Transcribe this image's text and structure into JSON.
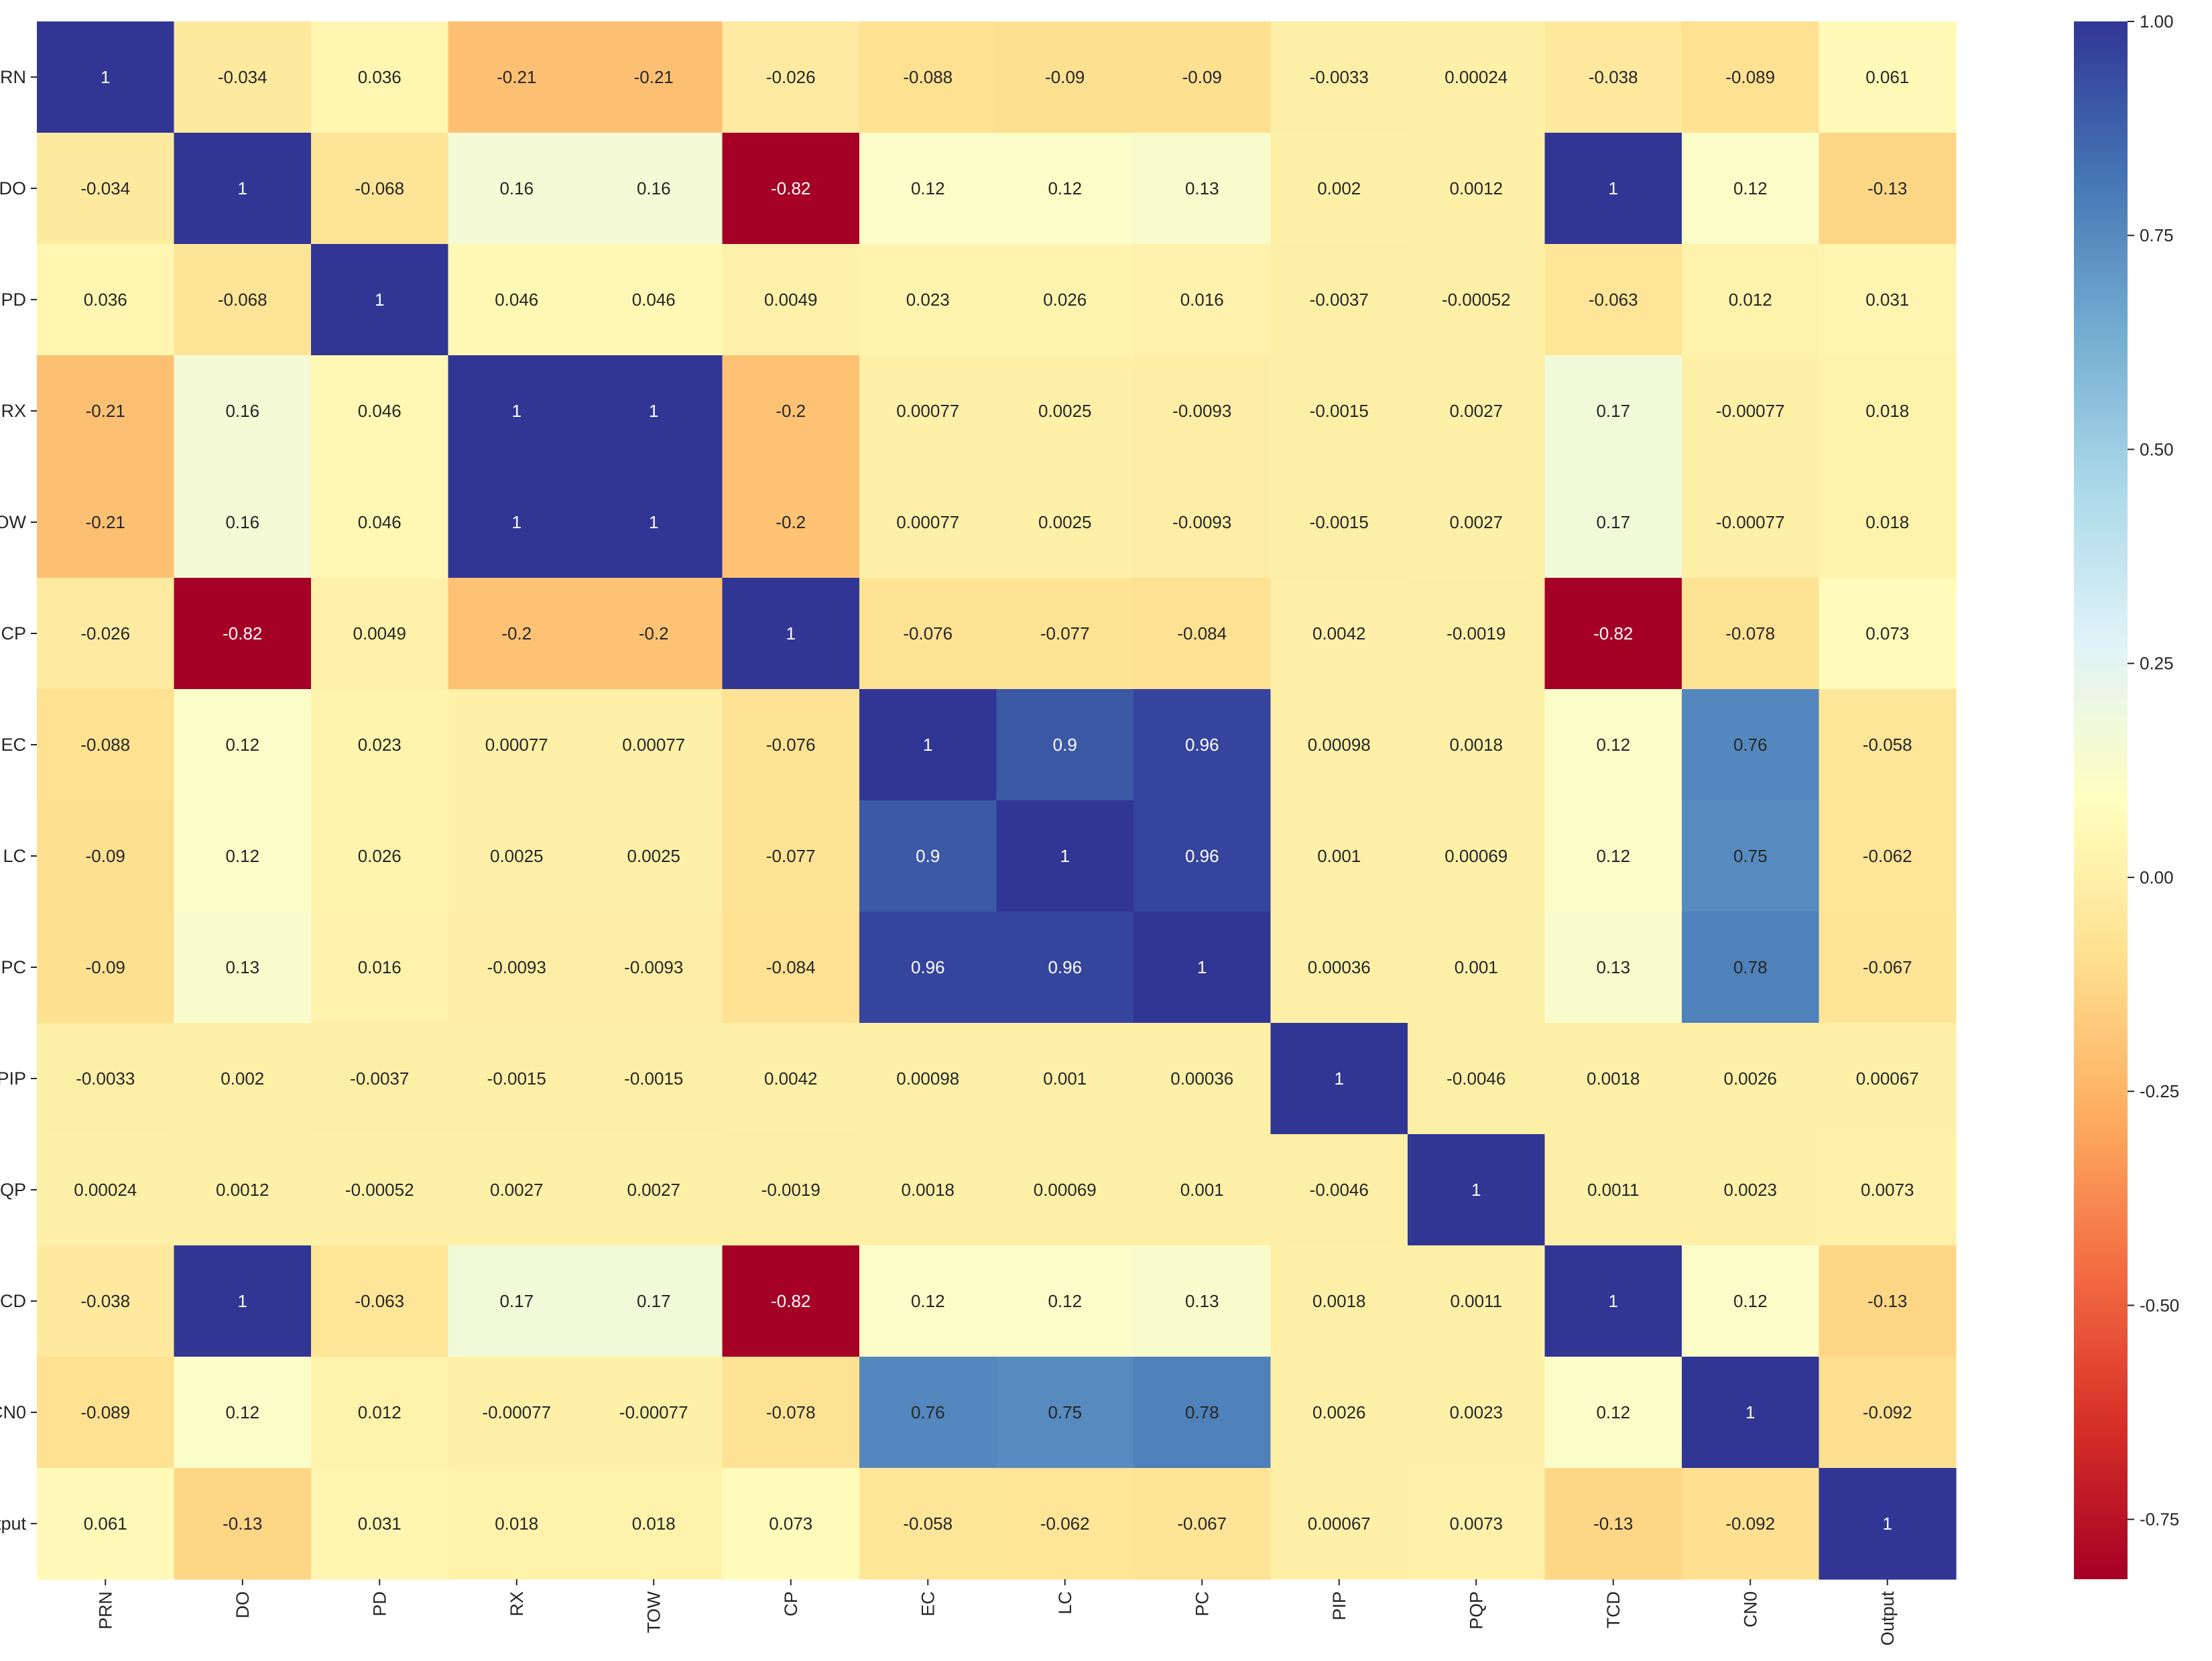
{
  "chart_data": {
    "type": "heatmap",
    "title": "",
    "xlabel": "",
    "ylabel": "",
    "labels": [
      "PRN",
      "DO",
      "PD",
      "RX",
      "TOW",
      "CP",
      "EC",
      "LC",
      "PC",
      "PIP",
      "PQP",
      "TCD",
      "CN0",
      "Output"
    ],
    "values": [
      [
        1,
        -0.034,
        0.036,
        -0.21,
        -0.21,
        -0.026,
        -0.088,
        -0.09,
        -0.09,
        -0.0033,
        0.00024,
        -0.038,
        -0.089,
        0.061
      ],
      [
        -0.034,
        1,
        -0.068,
        0.16,
        0.16,
        -0.82,
        0.12,
        0.12,
        0.13,
        0.002,
        0.0012,
        1,
        0.12,
        -0.13
      ],
      [
        0.036,
        -0.068,
        1,
        0.046,
        0.046,
        0.0049,
        0.023,
        0.026,
        0.016,
        -0.0037,
        -0.00052,
        -0.063,
        0.012,
        0.031
      ],
      [
        -0.21,
        0.16,
        0.046,
        1,
        1,
        -0.2,
        0.00077,
        0.0025,
        -0.0093,
        -0.0015,
        0.0027,
        0.17,
        -0.00077,
        0.018
      ],
      [
        -0.21,
        0.16,
        0.046,
        1,
        1,
        -0.2,
        0.00077,
        0.0025,
        -0.0093,
        -0.0015,
        0.0027,
        0.17,
        -0.00077,
        0.018
      ],
      [
        -0.026,
        -0.82,
        0.0049,
        -0.2,
        -0.2,
        1,
        -0.076,
        -0.077,
        -0.084,
        0.0042,
        -0.0019,
        -0.82,
        -0.078,
        0.073
      ],
      [
        -0.088,
        0.12,
        0.023,
        0.00077,
        0.00077,
        -0.076,
        1,
        0.9,
        0.96,
        0.00098,
        0.0018,
        0.12,
        0.76,
        -0.058
      ],
      [
        -0.09,
        0.12,
        0.026,
        0.0025,
        0.0025,
        -0.077,
        0.9,
        1,
        0.96,
        0.001,
        0.00069,
        0.12,
        0.75,
        -0.062
      ],
      [
        -0.09,
        0.13,
        0.016,
        -0.0093,
        -0.0093,
        -0.084,
        0.96,
        0.96,
        1,
        0.00036,
        0.001,
        0.13,
        0.78,
        -0.067
      ],
      [
        -0.0033,
        0.002,
        -0.0037,
        -0.0015,
        -0.0015,
        0.0042,
        0.00098,
        0.001,
        0.00036,
        1,
        -0.0046,
        0.0018,
        0.0026,
        0.00067
      ],
      [
        0.00024,
        0.0012,
        -0.00052,
        0.0027,
        0.0027,
        -0.0019,
        0.0018,
        0.00069,
        0.001,
        -0.0046,
        1,
        0.0011,
        0.0023,
        0.0073
      ],
      [
        -0.038,
        1,
        -0.063,
        0.17,
        0.17,
        -0.82,
        0.12,
        0.12,
        0.13,
        0.0018,
        0.0011,
        1,
        0.12,
        -0.13
      ],
      [
        -0.089,
        0.12,
        0.012,
        -0.00077,
        -0.00077,
        -0.078,
        0.76,
        0.75,
        0.78,
        0.0026,
        0.0023,
        0.12,
        1,
        -0.092
      ],
      [
        0.061,
        -0.13,
        0.031,
        0.018,
        0.018,
        0.073,
        -0.058,
        -0.062,
        -0.067,
        0.00067,
        0.0073,
        -0.13,
        -0.092,
        1
      ]
    ],
    "colormap": "RdYlBu",
    "colorbar": {
      "vmin": -0.82,
      "vmax": 1.0,
      "ticks": [
        -0.75,
        -0.5,
        -0.25,
        0.0,
        0.25,
        0.5,
        0.75,
        1.0
      ],
      "tick_labels": [
        "-0.75",
        "-0.50",
        "-0.25",
        "0.00",
        "0.25",
        "0.50",
        "0.75",
        "1.00"
      ],
      "placement": "right"
    },
    "annotations": true,
    "grid": false
  },
  "colormap_stops": [
    "#a50026",
    "#d73027",
    "#f46d43",
    "#fdae61",
    "#fee090",
    "#ffffbf",
    "#e0f3f8",
    "#abd9e9",
    "#74add1",
    "#4575b4",
    "#313695"
  ]
}
